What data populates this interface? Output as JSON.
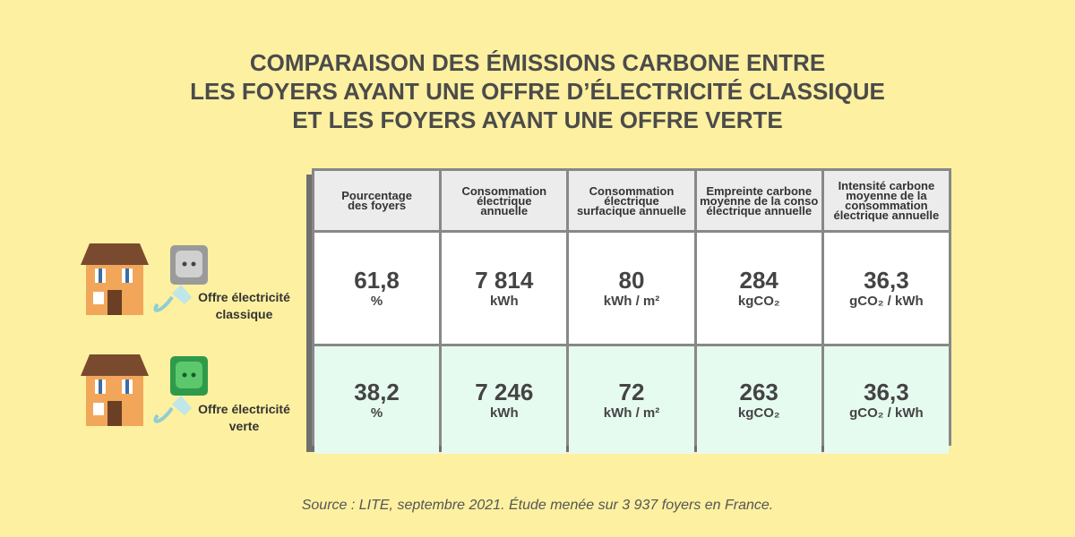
{
  "header": {
    "title_lines": [
      "COMPARAISON DES ÉMISSIONS CARBONE ENTRE",
      "LES FOYERS AYANT UNE OFFRE D’ÉLECTRICITÉ CLASSIQUE",
      "ET LES FOYERS AYANT UNE OFFRE VERTE"
    ]
  },
  "table": {
    "headers": [
      [
        "Pourcentage",
        "des foyers"
      ],
      [
        "Consommation",
        "électrique",
        "annuelle"
      ],
      [
        "Consommation",
        "électrique",
        "surfacique annuelle"
      ],
      [
        "Empreinte carbone",
        "moyenne de la conso",
        "électrique annuelle"
      ],
      [
        "Intensité carbone",
        "moyenne de la",
        "consommation",
        "électrique annuelle"
      ]
    ],
    "rows": [
      {
        "label": [
          "Offre électricité",
          "classique"
        ],
        "cells": [
          {
            "value": "61,8",
            "unit": "%"
          },
          {
            "value": "7 814",
            "unit": "kWh"
          },
          {
            "value": "80",
            "unit": "kWh / m²"
          },
          {
            "value": "284",
            "unit": "kgCO₂"
          },
          {
            "value": "36,3",
            "unit": "gCO₂ / kWh"
          }
        ]
      },
      {
        "label": [
          "Offre électricité",
          "verte"
        ],
        "cells": [
          {
            "value": "38,2",
            "unit": "%"
          },
          {
            "value": "7 246",
            "unit": "kWh"
          },
          {
            "value": "72",
            "unit": "kWh / m²"
          },
          {
            "value": "263",
            "unit": "kgCO₂"
          },
          {
            "value": "36,3",
            "unit": "gCO₂ / kWh"
          }
        ]
      }
    ]
  },
  "footer": {
    "source": "Source : LITE, septembre 2021. Étude menée sur 3 937 foyers en France."
  }
}
